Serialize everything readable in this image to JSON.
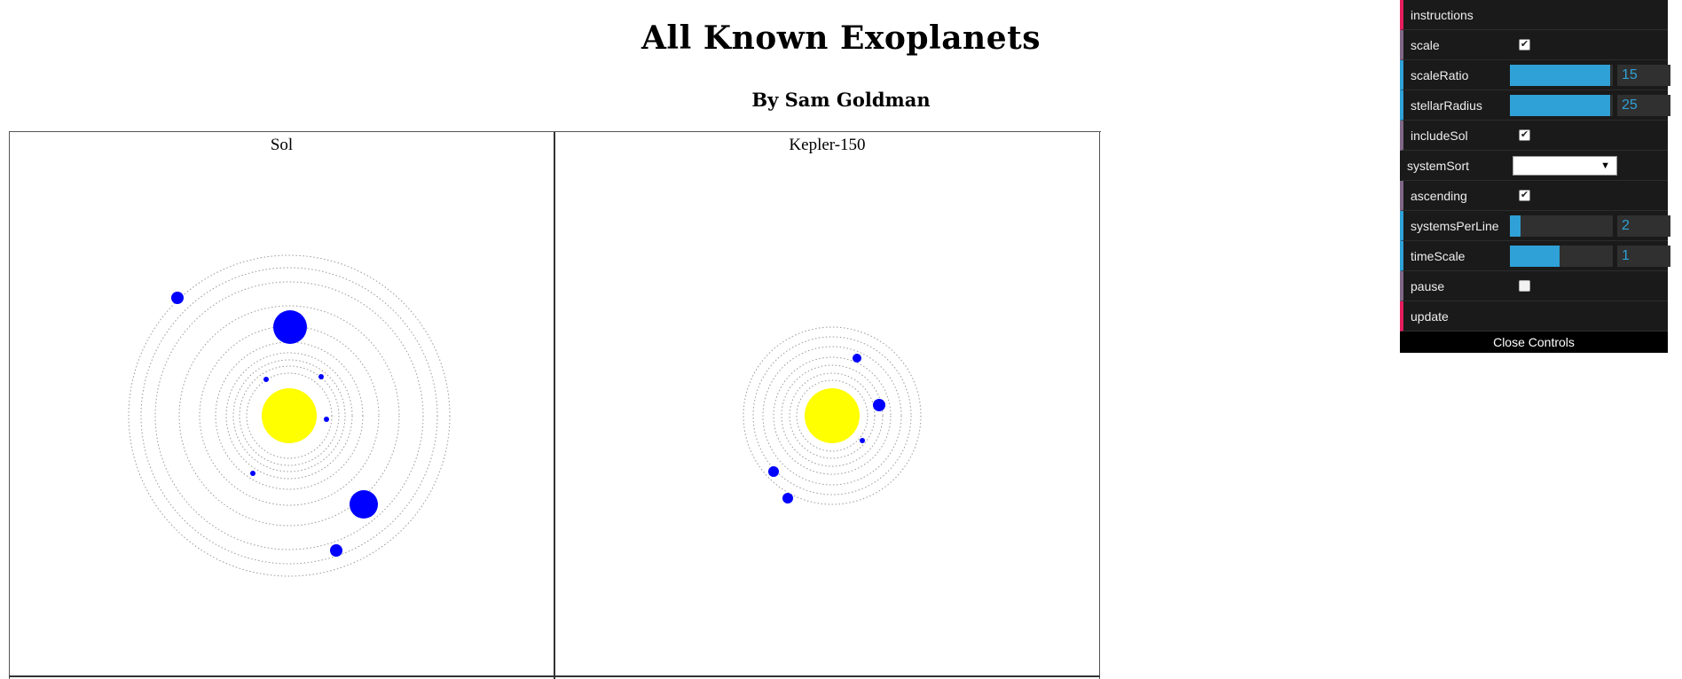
{
  "header": {
    "title": "All Known Exoplanets",
    "subtitle": "By Sam Goldman"
  },
  "systems": [
    {
      "name": "Sol"
    },
    {
      "name": "Kepler-150"
    }
  ],
  "controls": {
    "instructions": "instructions",
    "scale": {
      "label": "scale",
      "checked": true
    },
    "scaleRatio": {
      "label": "scaleRatio",
      "value": "15",
      "fraction": 0.97
    },
    "stellarRadius": {
      "label": "stellarRadius",
      "value": "25",
      "fraction": 0.97
    },
    "includeSol": {
      "label": "includeSol",
      "checked": true
    },
    "systemSort": {
      "label": "systemSort",
      "value": ""
    },
    "ascending": {
      "label": "ascending",
      "checked": true
    },
    "systemsPerLine": {
      "label": "systemsPerLine",
      "value": "2",
      "fraction": 0.1
    },
    "timeScale": {
      "label": "timeScale",
      "value": "1",
      "fraction": 0.48
    },
    "pause": {
      "label": "pause",
      "checked": false
    },
    "update": "update",
    "close": "Close Controls"
  },
  "colors": {
    "star": "#ffff00",
    "planet": "#0000ff",
    "orbit": "#9a9a9a",
    "panel_bg": "#1a1a1a",
    "accent": "#2fa1d6"
  }
}
